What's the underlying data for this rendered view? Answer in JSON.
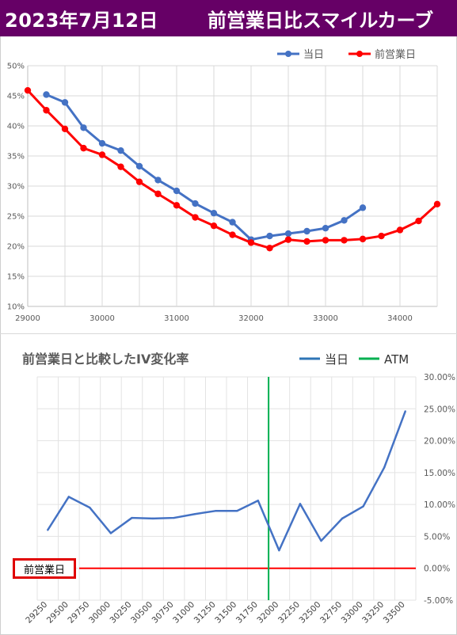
{
  "header": {
    "date": "2023年7月12日",
    "title": "前営業日比スマイルカーブ",
    "bg_color": "#660066"
  },
  "chart_data": [
    {
      "type": "line",
      "title": "",
      "legend_position": "top-right",
      "grid": true,
      "xlim": [
        29000,
        34500
      ],
      "ylim": [
        0.1,
        0.5
      ],
      "x_ticks": [
        "29000",
        "30000",
        "31000",
        "32000",
        "33000",
        "34000"
      ],
      "y_ticks": [
        "10%",
        "15%",
        "20%",
        "25%",
        "30%",
        "35%",
        "40%",
        "45%",
        "50%"
      ],
      "series": [
        {
          "name": "当日",
          "color": "#4472C4",
          "x": [
            29250,
            29500,
            29750,
            30000,
            30250,
            30500,
            30750,
            31000,
            31250,
            31500,
            31750,
            32000,
            32250,
            32500,
            32750,
            33000,
            33250,
            33500
          ],
          "y": [
            0.452,
            0.439,
            0.397,
            0.371,
            0.359,
            0.333,
            0.31,
            0.292,
            0.271,
            0.255,
            0.24,
            0.211,
            0.217,
            0.221,
            0.225,
            0.23,
            0.243,
            0.264
          ]
        },
        {
          "name": "前営業日",
          "color": "#FF0000",
          "x": [
            29000,
            29250,
            29500,
            29750,
            30000,
            30250,
            30500,
            30750,
            31000,
            31250,
            31500,
            31750,
            32000,
            32250,
            32500,
            32750,
            33000,
            33250,
            33500,
            33750,
            34000,
            34250,
            34500
          ],
          "y": [
            0.459,
            0.426,
            0.395,
            0.363,
            0.352,
            0.332,
            0.307,
            0.287,
            0.268,
            0.248,
            0.234,
            0.219,
            0.206,
            0.197,
            0.211,
            0.208,
            0.21,
            0.21,
            0.212,
            0.217,
            0.227,
            0.242,
            0.27
          ]
        }
      ]
    },
    {
      "type": "line",
      "title": "前営業日と比較したIV変化率",
      "legend_position": "top-right",
      "grid": true,
      "ylim": [
        -0.05,
        0.3
      ],
      "y_ticks": [
        "30.00%",
        "25.00%",
        "20.00%",
        "15.00%",
        "10.00%",
        "5.00%",
        "0.00%",
        "-5.00%"
      ],
      "categories": [
        "29250",
        "29500",
        "29750",
        "30000",
        "30250",
        "30500",
        "30750",
        "31000",
        "31250",
        "31500",
        "31750",
        "32000",
        "32250",
        "32500",
        "32750",
        "33000",
        "33250",
        "33500"
      ],
      "series": [
        {
          "name": "当日",
          "color": "#4472C4",
          "values": [
            0.06,
            0.112,
            0.095,
            0.055,
            0.079,
            0.078,
            0.079,
            0.085,
            0.09,
            0.09,
            0.106,
            0.028,
            0.101,
            0.043,
            0.078,
            0.097,
            0.158,
            0.246
          ]
        },
        {
          "name": "ATM",
          "color": "#00B050",
          "value": 31875
        }
      ],
      "baseline": {
        "label": "前営業日",
        "value": 0.0,
        "color": "#FF0000"
      }
    }
  ]
}
